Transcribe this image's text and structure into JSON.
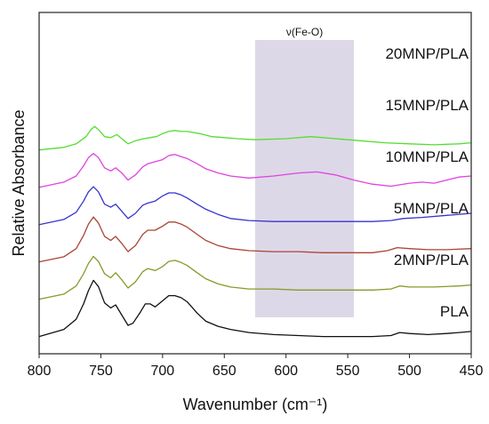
{
  "chart_data": {
    "type": "line",
    "title": "",
    "xlabel": "Wavenumber (cm⁻¹)",
    "ylabel": "Relative Absorbance",
    "xlim": [
      800,
      450
    ],
    "x_reversed": true,
    "x_ticks": [
      800,
      750,
      700,
      650,
      600,
      550,
      500,
      450
    ],
    "y_ticks_shown": false,
    "grid": false,
    "legend": "none (series labeled inline at right)",
    "band": {
      "label": "ν(Fe-O)",
      "from": 625,
      "to": 545,
      "color": "#ddd8e8"
    },
    "series": [
      {
        "name": "20MNP/PLA",
        "color": "#55dd33",
        "offset": 5,
        "points": [
          [
            800,
            0.9
          ],
          [
            780,
            1.15
          ],
          [
            770,
            1.5
          ],
          [
            762,
            2.2
          ],
          [
            758,
            2.9
          ],
          [
            755,
            3.2
          ],
          [
            752,
            2.9
          ],
          [
            747,
            2.2
          ],
          [
            742,
            2.1
          ],
          [
            737,
            2.4
          ],
          [
            733,
            2.0
          ],
          [
            728,
            1.5
          ],
          [
            722,
            1.8
          ],
          [
            715,
            2.0
          ],
          [
            710,
            2.1
          ],
          [
            705,
            2.2
          ],
          [
            700,
            2.5
          ],
          [
            695,
            2.7
          ],
          [
            690,
            2.8
          ],
          [
            685,
            2.7
          ],
          [
            680,
            2.7
          ],
          [
            670,
            2.5
          ],
          [
            660,
            2.2
          ],
          [
            650,
            2.1
          ],
          [
            640,
            2.0
          ],
          [
            625,
            1.9
          ],
          [
            600,
            2.0
          ],
          [
            580,
            2.2
          ],
          [
            560,
            2.0
          ],
          [
            540,
            1.8
          ],
          [
            520,
            1.6
          ],
          [
            500,
            1.5
          ],
          [
            480,
            1.4
          ],
          [
            460,
            1.5
          ],
          [
            450,
            1.6
          ]
        ]
      },
      {
        "name": "15MNP/PLA",
        "color": "#dd44dd",
        "offset": 4,
        "points": [
          [
            800,
            0.9
          ],
          [
            780,
            1.4
          ],
          [
            770,
            2.0
          ],
          [
            764,
            3.0
          ],
          [
            760,
            3.8
          ],
          [
            756,
            4.2
          ],
          [
            752,
            3.8
          ],
          [
            747,
            2.8
          ],
          [
            742,
            2.5
          ],
          [
            738,
            2.8
          ],
          [
            733,
            2.3
          ],
          [
            728,
            1.6
          ],
          [
            722,
            2.1
          ],
          [
            716,
            2.9
          ],
          [
            712,
            3.2
          ],
          [
            706,
            3.4
          ],
          [
            700,
            3.6
          ],
          [
            695,
            4.0
          ],
          [
            690,
            4.1
          ],
          [
            685,
            3.9
          ],
          [
            680,
            3.7
          ],
          [
            672,
            3.2
          ],
          [
            665,
            2.7
          ],
          [
            655,
            2.3
          ],
          [
            645,
            2.0
          ],
          [
            630,
            1.8
          ],
          [
            610,
            2.0
          ],
          [
            590,
            2.3
          ],
          [
            575,
            2.4
          ],
          [
            560,
            2.1
          ],
          [
            545,
            1.6
          ],
          [
            530,
            1.2
          ],
          [
            515,
            1.0
          ],
          [
            500,
            1.3
          ],
          [
            490,
            1.4
          ],
          [
            480,
            1.3
          ],
          [
            470,
            1.6
          ],
          [
            460,
            1.9
          ],
          [
            450,
            2.0
          ]
        ]
      },
      {
        "name": "10MNP/PLA",
        "color": "#3535cc",
        "offset": 3,
        "points": [
          [
            800,
            0.9
          ],
          [
            780,
            1.4
          ],
          [
            770,
            2.1
          ],
          [
            764,
            3.2
          ],
          [
            760,
            4.1
          ],
          [
            756,
            4.6
          ],
          [
            752,
            4.1
          ],
          [
            747,
            2.9
          ],
          [
            742,
            2.6
          ],
          [
            738,
            2.9
          ],
          [
            733,
            2.2
          ],
          [
            728,
            1.5
          ],
          [
            722,
            2.0
          ],
          [
            716,
            2.8
          ],
          [
            712,
            3.0
          ],
          [
            706,
            3.2
          ],
          [
            700,
            3.7
          ],
          [
            695,
            4.0
          ],
          [
            690,
            4.0
          ],
          [
            685,
            3.8
          ],
          [
            680,
            3.5
          ],
          [
            672,
            2.9
          ],
          [
            665,
            2.4
          ],
          [
            655,
            1.9
          ],
          [
            645,
            1.5
          ],
          [
            630,
            1.3
          ],
          [
            610,
            1.2
          ],
          [
            590,
            1.2
          ],
          [
            570,
            1.2
          ],
          [
            550,
            1.2
          ],
          [
            530,
            1.2
          ],
          [
            515,
            1.3
          ],
          [
            505,
            1.5
          ],
          [
            490,
            1.6
          ],
          [
            470,
            1.8
          ],
          [
            450,
            2.0
          ]
        ]
      },
      {
        "name": "5MNP/PLA",
        "color": "#aa4433",
        "offset": 2,
        "points": [
          [
            800,
            0.9
          ],
          [
            780,
            1.4
          ],
          [
            770,
            2.2
          ],
          [
            764,
            3.5
          ],
          [
            760,
            4.6
          ],
          [
            756,
            5.3
          ],
          [
            752,
            4.7
          ],
          [
            747,
            3.4
          ],
          [
            742,
            3.0
          ],
          [
            738,
            3.4
          ],
          [
            733,
            2.7
          ],
          [
            728,
            1.9
          ],
          [
            722,
            2.5
          ],
          [
            716,
            3.6
          ],
          [
            712,
            4.0
          ],
          [
            706,
            4.0
          ],
          [
            700,
            4.4
          ],
          [
            695,
            4.8
          ],
          [
            690,
            4.8
          ],
          [
            685,
            4.6
          ],
          [
            680,
            4.3
          ],
          [
            672,
            3.6
          ],
          [
            665,
            3.0
          ],
          [
            655,
            2.5
          ],
          [
            645,
            2.2
          ],
          [
            630,
            2.0
          ],
          [
            610,
            1.9
          ],
          [
            590,
            1.9
          ],
          [
            570,
            1.8
          ],
          [
            550,
            1.8
          ],
          [
            530,
            1.8
          ],
          [
            518,
            2.0
          ],
          [
            510,
            2.3
          ],
          [
            500,
            2.2
          ],
          [
            485,
            2.1
          ],
          [
            470,
            2.1
          ],
          [
            450,
            2.2
          ]
        ]
      },
      {
        "name": "2MNP/PLA",
        "color": "#88992a",
        "offset": 1,
        "points": [
          [
            800,
            0.9
          ],
          [
            780,
            1.4
          ],
          [
            770,
            2.2
          ],
          [
            764,
            3.4
          ],
          [
            760,
            4.4
          ],
          [
            756,
            5.1
          ],
          [
            752,
            4.6
          ],
          [
            747,
            3.4
          ],
          [
            742,
            3.0
          ],
          [
            738,
            3.5
          ],
          [
            733,
            2.8
          ],
          [
            728,
            2.0
          ],
          [
            722,
            2.6
          ],
          [
            716,
            3.6
          ],
          [
            712,
            3.9
          ],
          [
            706,
            3.7
          ],
          [
            700,
            4.1
          ],
          [
            695,
            4.6
          ],
          [
            690,
            4.7
          ],
          [
            685,
            4.5
          ],
          [
            680,
            4.2
          ],
          [
            672,
            3.5
          ],
          [
            665,
            2.9
          ],
          [
            655,
            2.4
          ],
          [
            645,
            2.1
          ],
          [
            630,
            1.9
          ],
          [
            610,
            1.9
          ],
          [
            590,
            1.8
          ],
          [
            570,
            1.8
          ],
          [
            550,
            1.8
          ],
          [
            530,
            1.8
          ],
          [
            515,
            1.9
          ],
          [
            508,
            2.2
          ],
          [
            500,
            2.1
          ],
          [
            480,
            2.1
          ],
          [
            460,
            2.2
          ],
          [
            450,
            2.3
          ]
        ]
      },
      {
        "name": "PLA",
        "color": "#111111",
        "offset": 0,
        "points": [
          [
            800,
            0.9
          ],
          [
            780,
            1.6
          ],
          [
            770,
            2.6
          ],
          [
            764,
            4.1
          ],
          [
            760,
            5.4
          ],
          [
            756,
            6.4
          ],
          [
            752,
            5.8
          ],
          [
            747,
            4.2
          ],
          [
            742,
            3.7
          ],
          [
            738,
            4.0
          ],
          [
            733,
            3.0
          ],
          [
            728,
            2.0
          ],
          [
            724,
            2.2
          ],
          [
            718,
            3.3
          ],
          [
            714,
            4.1
          ],
          [
            710,
            4.1
          ],
          [
            706,
            3.8
          ],
          [
            700,
            4.4
          ],
          [
            695,
            4.9
          ],
          [
            690,
            4.9
          ],
          [
            685,
            4.7
          ],
          [
            680,
            4.3
          ],
          [
            672,
            3.2
          ],
          [
            665,
            2.4
          ],
          [
            655,
            1.9
          ],
          [
            645,
            1.6
          ],
          [
            630,
            1.3
          ],
          [
            610,
            1.1
          ],
          [
            590,
            1.0
          ],
          [
            570,
            0.9
          ],
          [
            550,
            0.9
          ],
          [
            530,
            0.9
          ],
          [
            515,
            1.0
          ],
          [
            508,
            1.3
          ],
          [
            500,
            1.2
          ],
          [
            485,
            1.1
          ],
          [
            470,
            1.2
          ],
          [
            460,
            1.3
          ],
          [
            450,
            1.4
          ]
        ]
      }
    ]
  }
}
